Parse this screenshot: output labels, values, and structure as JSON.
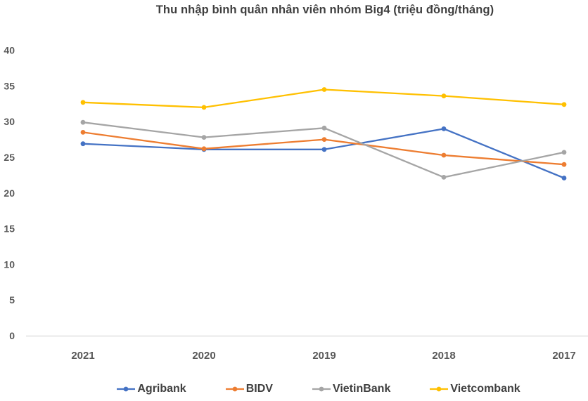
{
  "title": "Thu nhập bình quân nhân viên nhóm Big4 (triệu đồng/tháng)",
  "chart_data": {
    "type": "line",
    "title": "Thu nhập bình quân nhân viên nhóm Big4 (triệu đồng/tháng)",
    "categories": [
      "2021",
      "2020",
      "2019",
      "2018",
      "2017"
    ],
    "series": [
      {
        "name": "Agribank",
        "color": "#4472C4",
        "values": [
          26.9,
          26.1,
          26.1,
          29.0,
          22.1
        ]
      },
      {
        "name": "BIDV",
        "color": "#ED7D31",
        "values": [
          28.5,
          26.2,
          27.5,
          25.3,
          24.0
        ]
      },
      {
        "name": "VietinBank",
        "color": "#A5A5A5",
        "values": [
          29.9,
          27.8,
          29.1,
          22.2,
          25.7
        ]
      },
      {
        "name": "Vietcombank",
        "color": "#FFC000",
        "values": [
          32.7,
          32.0,
          34.5,
          33.6,
          32.4
        ]
      }
    ],
    "xlabel": "",
    "ylabel": "",
    "ylim": [
      0,
      40
    ],
    "ytick_step": 5,
    "ytick_labels": [
      "0",
      "5",
      "10",
      "15",
      "20",
      "25",
      "30",
      "35",
      "40"
    ],
    "grid": false,
    "markers": true,
    "legend_position": "bottom"
  },
  "colors": {
    "title_text": "#3F3F3F",
    "axis_text": "#595959",
    "axis_line": "#D9D9D9",
    "background": "#FFFFFF"
  }
}
